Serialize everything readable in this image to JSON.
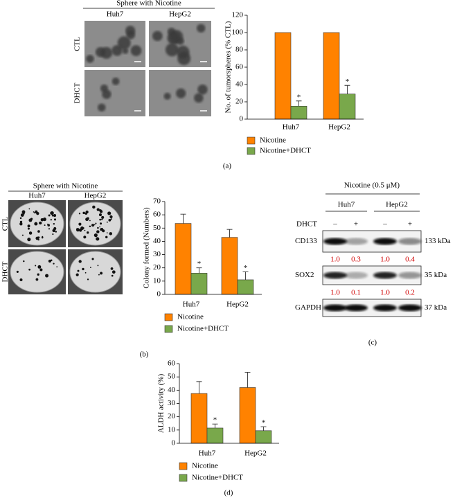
{
  "panel_labels": [
    "(a)",
    "(b)",
    "(c)",
    "(d)"
  ],
  "sphere_images": [
    {
      "title": "Sphere with Nicotine",
      "columns": [
        "Huh7",
        "HepG2"
      ],
      "rows": [
        "CTL",
        "DHCT"
      ]
    },
    {
      "title": "Sphere with Nicotine",
      "columns": [
        "Huh7",
        "HepG2"
      ],
      "rows": [
        "CTL",
        "DHCT"
      ]
    }
  ],
  "western_blot": {
    "title": "Nicotine (0.5 μM)",
    "groups": [
      "Huh7",
      "HepG2"
    ],
    "treatment": "DHCT",
    "treatment_signs": [
      "–",
      "+",
      "–",
      "+"
    ],
    "proteins": [
      {
        "name": "CD133",
        "size": "133 kDa",
        "ratios": [
          "1.0",
          "0.3",
          "1.0",
          "0.4"
        ]
      },
      {
        "name": "SOX2",
        "size": "35 kDa",
        "ratios": [
          "1.0",
          "0.1",
          "1.0",
          "0.2"
        ]
      },
      {
        "name": "GAPDH",
        "size": "37 kDa"
      }
    ]
  },
  "chart_data": [
    {
      "type": "bar",
      "ylabel": "No. of tumorspheres (% CTL)",
      "categories": [
        "Huh7",
        "HepG2"
      ],
      "series": [
        {
          "name": "Nicotine",
          "color": "#ff8200",
          "values": [
            100,
            100
          ]
        },
        {
          "name": "Nicotine+DHCT",
          "color": "#79a84b",
          "values": [
            15,
            29
          ],
          "errors": [
            6,
            10
          ],
          "annotations": [
            "*",
            "*"
          ]
        }
      ],
      "ylim": [
        0,
        120
      ],
      "yticks": [
        0,
        20,
        40,
        60,
        80,
        100,
        120
      ]
    },
    {
      "type": "bar",
      "ylabel": "Colony formed (Numbers)",
      "categories": [
        "Huh7",
        "HepG2"
      ],
      "series": [
        {
          "name": "Nicotine",
          "color": "#ff8200",
          "values": [
            53.5,
            43
          ],
          "errors": [
            7,
            6
          ]
        },
        {
          "name": "Nicotine+DHCT",
          "color": "#79a84b",
          "values": [
            16,
            11
          ],
          "errors": [
            4,
            6
          ],
          "annotations": [
            "*",
            "*"
          ]
        }
      ],
      "ylim": [
        0,
        70
      ],
      "yticks": [
        0,
        10,
        20,
        30,
        40,
        50,
        60,
        70
      ]
    },
    {
      "type": "bar",
      "ylabel": "ALDH activity (%)",
      "categories": [
        "Huh7",
        "HepG2"
      ],
      "series": [
        {
          "name": "Nicotine",
          "color": "#ff8200",
          "values": [
            37.5,
            42
          ],
          "errors": [
            9,
            11.5
          ]
        },
        {
          "name": "Nicotine+DHCT",
          "color": "#79a84b",
          "values": [
            11.5,
            9.5
          ],
          "errors": [
            3,
            3
          ],
          "annotations": [
            "*",
            "*"
          ]
        }
      ],
      "ylim": [
        0,
        60
      ],
      "yticks": [
        0,
        10,
        20,
        30,
        40,
        50,
        60
      ]
    }
  ]
}
